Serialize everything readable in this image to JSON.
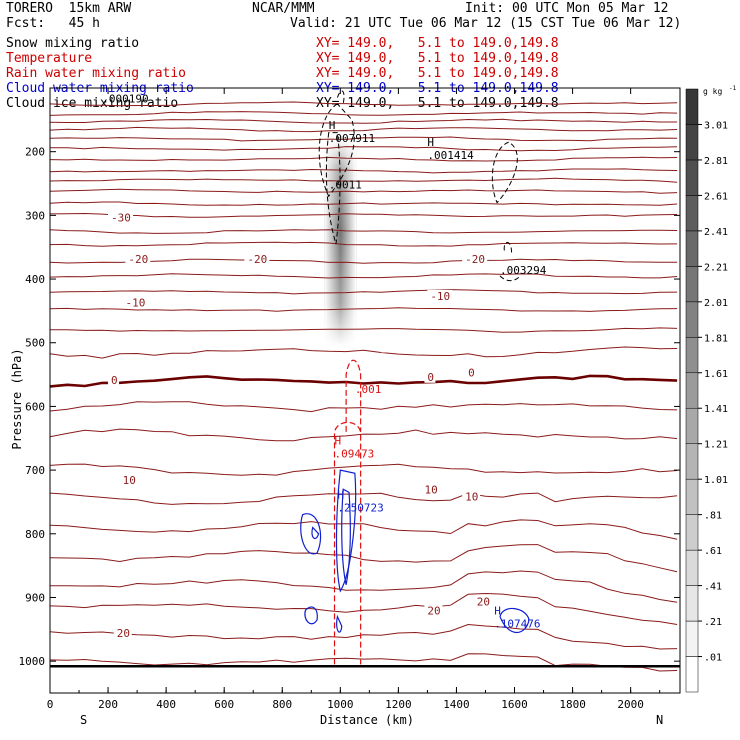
{
  "header": {
    "model": "TORERO  15km ARW",
    "org": "NCAR/MMM",
    "init": "Init: 00 UTC Mon 05 Mar 12",
    "fcst": "Fcst:   45 h",
    "valid": "Valid: 21 UTC Tue 06 Mar 12 (15 CST Tue 06 Mar 12)"
  },
  "legend": [
    {
      "name": "Snow mixing ratio",
      "range": "XY= 149.0,   5.1 to 149.0,149.8",
      "color": "#000000"
    },
    {
      "name": "Temperature",
      "range": "XY= 149.0,   5.1 to 149.0,149.8",
      "color": "#cc0000"
    },
    {
      "name": "Rain water mixing ratio",
      "range": "XY= 149.0,   5.1 to 149.0,149.8",
      "color": "#cc0000"
    },
    {
      "name": "Cloud water mixing ratio",
      "range": "XY= 149.0,   5.1 to 149.0,149.8",
      "color": "#0000cc"
    },
    {
      "name": "Cloud ice mixing ratio",
      "range": "XY= 149.0,   5.1 to 149.0,149.8",
      "color": "#000000"
    }
  ],
  "colors": {
    "temperature": "#8b1a1a",
    "freezing": "#6b0000",
    "rain": "#e01010",
    "cloud_water": "#1020d0",
    "snow": "#000000"
  },
  "chart_data": {
    "type": "heatmap",
    "xlabel": "Distance (km)",
    "ylabel": "Pressure (hPa)",
    "xlim": [
      0,
      2170
    ],
    "ylim": [
      1050,
      100
    ],
    "xticks": [
      0,
      200,
      400,
      600,
      800,
      1000,
      1200,
      1400,
      1600,
      1800,
      2000
    ],
    "yticks": [
      200,
      300,
      400,
      500,
      600,
      700,
      800,
      900,
      1000
    ],
    "x_end_labels": {
      "left": "S",
      "right": "N"
    },
    "colorbar": {
      "unit": "g kg",
      "unit_exp": "-1",
      "ticks": [
        ".01",
        ".21",
        ".41",
        ".61",
        ".81",
        "1.01",
        "1.21",
        "1.41",
        "1.61",
        "1.81",
        "2.01",
        "2.21",
        "2.41",
        "2.61",
        "2.81",
        "3.01"
      ]
    },
    "temperature_lines_p": [
      125,
      140,
      152,
      165,
      180,
      195,
      212,
      230,
      245,
      262,
      282,
      300,
      325,
      345,
      372,
      395,
      420,
      448,
      480,
      515,
      560,
      600,
      645,
      700,
      745,
      790,
      835,
      880,
      915,
      960,
      1000
    ],
    "temperature_labels": [
      {
        "text": "-30",
        "x": 210,
        "p": 305
      },
      {
        "text": "-20",
        "x": 270,
        "p": 370
      },
      {
        "text": "-20",
        "x": 680,
        "p": 370
      },
      {
        "text": "-20",
        "x": 1430,
        "p": 370
      },
      {
        "text": "-10",
        "x": 260,
        "p": 438
      },
      {
        "text": "-10",
        "x": 1310,
        "p": 428
      },
      {
        "text": "0",
        "x": 210,
        "p": 560
      },
      {
        "text": "0",
        "x": 1300,
        "p": 555
      },
      {
        "text": "0",
        "x": 1440,
        "p": 548
      },
      {
        "text": "10",
        "x": 250,
        "p": 717
      },
      {
        "text": "10",
        "x": 1290,
        "p": 732
      },
      {
        "text": "10",
        "x": 1430,
        "p": 743
      },
      {
        "text": "20",
        "x": 230,
        "p": 957
      },
      {
        "text": "20",
        "x": 1300,
        "p": 922
      },
      {
        "text": "20",
        "x": 1470,
        "p": 908
      }
    ],
    "snow_maxima": [
      {
        "label": "H",
        "value": ".007911",
        "x": 960,
        "p": 182
      },
      {
        "label": "",
        "value": ".0011",
        "x": 960,
        "p": 255
      },
      {
        "label": "H",
        "value": ".001414",
        "x": 1300,
        "p": 208
      },
      {
        "label": "",
        "value": ".003294",
        "x": 1550,
        "p": 389
      }
    ],
    "rain_maxima": [
      {
        "label": "",
        "value": ".001",
        "x": 1050,
        "p": 576
      },
      {
        "label": "H",
        "value": ".09473",
        "x": 980,
        "p": 677
      }
    ],
    "cloud_water_maxima": [
      {
        "label": "H",
        "value": ".250723",
        "x": 990,
        "p": 762
      },
      {
        "label": "H",
        "value": ".107476",
        "x": 1530,
        "p": 944
      }
    ],
    "cloud_ice_maxima": [
      {
        "label": "",
        "value": ".000190",
        "x": 180,
        "p": 120
      }
    ],
    "shading_peak_g_kg": 3.01
  }
}
